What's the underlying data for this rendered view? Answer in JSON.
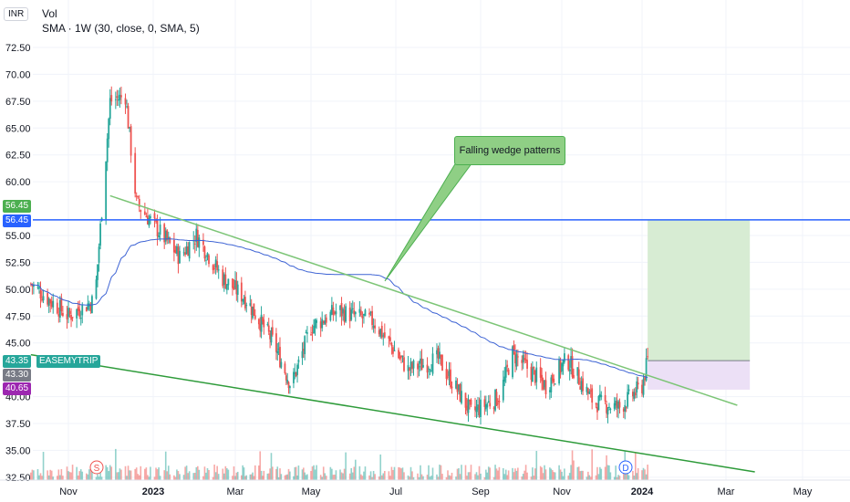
{
  "header": {
    "currency": "INR",
    "vol_label": "Vol",
    "sma_label": "SMA · 1W (30, close, 0, SMA, 5)"
  },
  "annotation": {
    "text": "Falling wedge patterns"
  },
  "markers": [
    {
      "text": "S"
    },
    {
      "text": "D"
    }
  ],
  "price_labels": {
    "resistance_top": "56.45",
    "resistance": "56.45",
    "last": "43.35",
    "ticker": "EASEMYTRIP",
    "prev": "43.30",
    "stop": "40.65"
  },
  "colors": {
    "up": "#26a69a",
    "down": "#ef5350",
    "sma": "#3d63d4",
    "wedge_upper": "#7cc576",
    "wedge_lower": "#2e9b3a",
    "resistance": "#2962ff",
    "target_zone": "#d7ecd3",
    "stop_zone": "#ece0f6"
  },
  "chart_data": {
    "type": "candlestick",
    "title": "",
    "xlabel": "",
    "ylabel": "",
    "y_ticks": [
      "72.50",
      "70.00",
      "67.50",
      "65.00",
      "62.50",
      "60.00",
      "55.00",
      "52.50",
      "50.00",
      "47.50",
      "45.00",
      "40.00",
      "37.50",
      "35.00",
      "32.50"
    ],
    "ylim": [
      32.5,
      73.5
    ],
    "x_ticks": [
      "Nov",
      "2023",
      "Mar",
      "May",
      "Jul",
      "Sep",
      "Nov",
      "2024",
      "Mar",
      "May"
    ],
    "resistance_level": 56.45,
    "sma_period": 30,
    "wedge_upper": {
      "from": [
        "2022-12-01",
        58.7
      ],
      "to": [
        "2024-03-10",
        39.2
      ]
    },
    "wedge_lower": {
      "from": [
        "2022-10-05",
        43.9
      ],
      "to": [
        "2024-03-24",
        33.0
      ]
    },
    "long_position": {
      "entry": 43.35,
      "target": 56.45,
      "stop": 40.65,
      "from": "2024-01-05",
      "to": "2024-03-20"
    },
    "key_points": [
      {
        "date": "2022-10-05",
        "close": 50.5
      },
      {
        "date": "2022-11-01",
        "close": 47.5
      },
      {
        "date": "2022-11-20",
        "close": 49.0
      },
      {
        "date": "2022-12-01",
        "close": 67.5
      },
      {
        "date": "2022-12-12",
        "close": 68.0
      },
      {
        "date": "2022-12-20",
        "close": 58.0
      },
      {
        "date": "2023-01-20",
        "close": 53.0
      },
      {
        "date": "2023-02-01",
        "close": 55.0
      },
      {
        "date": "2023-02-20",
        "close": 51.0
      },
      {
        "date": "2023-03-10",
        "close": 49.0
      },
      {
        "date": "2023-04-01",
        "close": 45.0
      },
      {
        "date": "2023-04-15",
        "close": 41.0
      },
      {
        "date": "2023-05-01",
        "close": 46.5
      },
      {
        "date": "2023-05-20",
        "close": 48.0
      },
      {
        "date": "2023-06-15",
        "close": 47.0
      },
      {
        "date": "2023-07-10",
        "close": 42.5
      },
      {
        "date": "2023-08-01",
        "close": 43.5
      },
      {
        "date": "2023-08-25",
        "close": 38.5
      },
      {
        "date": "2023-09-15",
        "close": 40.0
      },
      {
        "date": "2023-09-25",
        "close": 44.0
      },
      {
        "date": "2023-10-20",
        "close": 41.0
      },
      {
        "date": "2023-11-05",
        "close": 43.5
      },
      {
        "date": "2023-11-25",
        "close": 39.5
      },
      {
        "date": "2023-12-15",
        "close": 39.0
      },
      {
        "date": "2024-01-01",
        "close": 41.0
      },
      {
        "date": "2024-01-05",
        "close": 43.35
      }
    ]
  }
}
